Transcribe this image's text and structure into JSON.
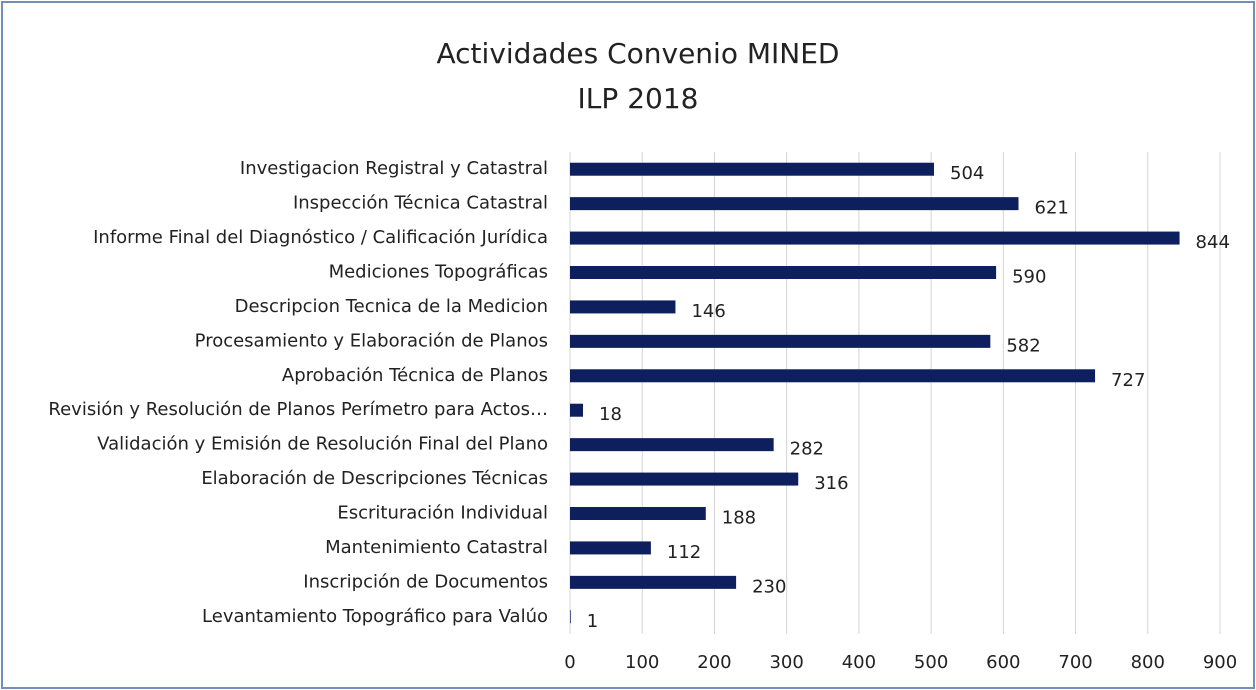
{
  "chart_data": {
    "type": "bar",
    "orientation": "horizontal",
    "title": [
      "Actividades Convenio MINED",
      "ILP 2018"
    ],
    "categories": [
      "Investigacion Registral y Catastral",
      "Inspección Técnica Catastral",
      "Informe Final del Diagnóstico / Calificación Jurídica",
      "Mediciones Topográficas",
      "Descripcion Tecnica de la Medicion",
      "Procesamiento y Elaboración de Planos",
      "Aprobación Técnica de Planos",
      "Revisión y Resolución de Planos Perímetro para Actos…",
      "Validación y Emisión de Resolución Final del Plano",
      "Elaboración de Descripciones Técnicas",
      "Escrituración Individual",
      "Mantenimiento Catastral",
      "Inscripción de Documentos",
      "Levantamiento Topográfico para Valúo"
    ],
    "values": [
      504,
      621,
      844,
      590,
      146,
      582,
      727,
      18,
      282,
      316,
      188,
      112,
      230,
      1
    ],
    "color": "#0d1f5c",
    "xlim": [
      0,
      900
    ],
    "xticks": [
      0,
      100,
      200,
      300,
      400,
      500,
      600,
      700,
      800,
      900
    ],
    "grid": true
  }
}
